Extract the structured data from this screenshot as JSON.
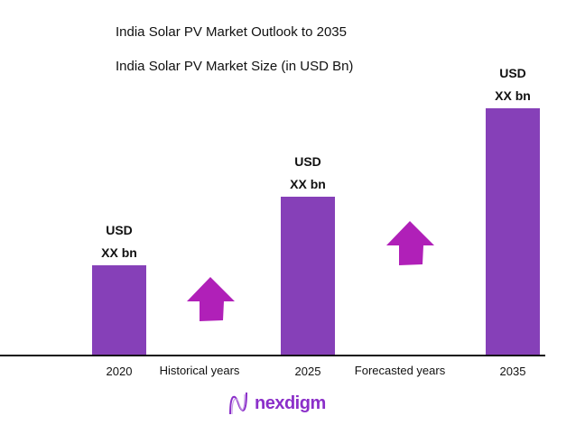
{
  "chart_data": {
    "type": "bar",
    "title": "India Solar PV Market Outlook to 2035",
    "subtitle": "India Solar PV Market Size (in USD Bn)",
    "categories": [
      "2020",
      "2025",
      "2035"
    ],
    "values": [
      100,
      176,
      274
    ],
    "data_labels": [
      {
        "line1": "USD",
        "line2": "XX bn"
      },
      {
        "line1": "USD",
        "line2": "XX bn"
      },
      {
        "line1": "USD",
        "line2": "XX bn"
      }
    ],
    "period_labels": [
      "Historical years",
      "Forecasted years"
    ],
    "grid": false,
    "bar_color": "#8640b8",
    "arrow_color": "#b020b8"
  },
  "brand": {
    "name": "nexdigm",
    "color": "#8b2fc9"
  }
}
